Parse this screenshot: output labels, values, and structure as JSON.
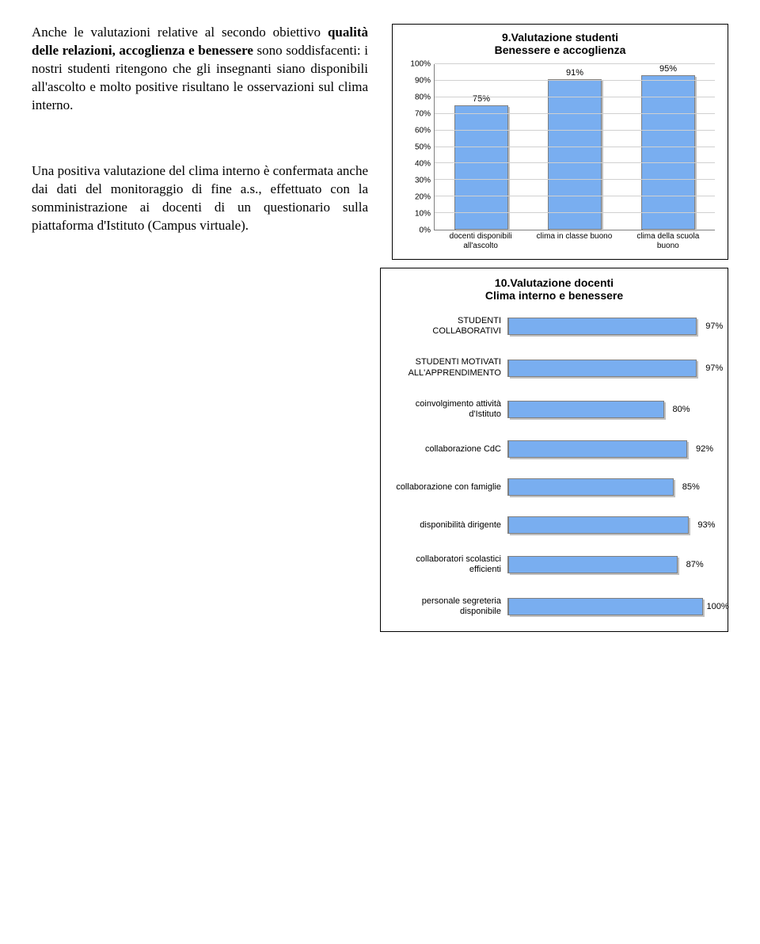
{
  "text": {
    "p1_a": "Anche le valutazioni relative al secondo obiettivo ",
    "p1_b": "qualità delle relazioni, accoglienza e benessere",
    "p1_c": " sono soddisfacenti: i nostri studenti ritengono che gli insegnanti siano disponibili all'ascolto e molto positive risultano le osservazioni sul clima interno.",
    "p2": "Una positiva valutazione del clima interno è confermata anche dai dati del monitoraggio di fine a.s., effettuato con la somministrazione ai docenti di un questionario sulla piattaforma d'Istituto (Campus virtuale)."
  },
  "chart9": {
    "title": "9.Valutazione studenti\nBenessere e accoglienza",
    "ymax": 100,
    "ytick": 10,
    "categories": [
      {
        "label": "docenti disponibili all'ascolto",
        "value": 75
      },
      {
        "label": "clima in classe buono",
        "value": 91
      },
      {
        "label": "clima della scuola buono",
        "value": 95
      }
    ],
    "bar_color": "#79aef0",
    "grid_color": "#d0d0d0"
  },
  "chart10": {
    "title": "10.Valutazione docenti\nClima interno e benessere",
    "xmax": 100,
    "rows": [
      {
        "label": "STUDENTI COLLABORATIVI",
        "value": 97
      },
      {
        "label": "STUDENTI MOTIVATI ALL'APPRENDIMENTO",
        "value": 97
      },
      {
        "label": "coinvolgimento attività d'Istituto",
        "value": 80
      },
      {
        "label": "collaborazione CdC",
        "value": 92
      },
      {
        "label": "collaborazione con famiglie",
        "value": 85
      },
      {
        "label": "disponibilità dirigente",
        "value": 93
      },
      {
        "label": "collaboratori scolastici efficienti",
        "value": 87
      },
      {
        "label": "personale segreteria disponibile",
        "value": 100
      }
    ],
    "bar_color": "#79aef0"
  }
}
